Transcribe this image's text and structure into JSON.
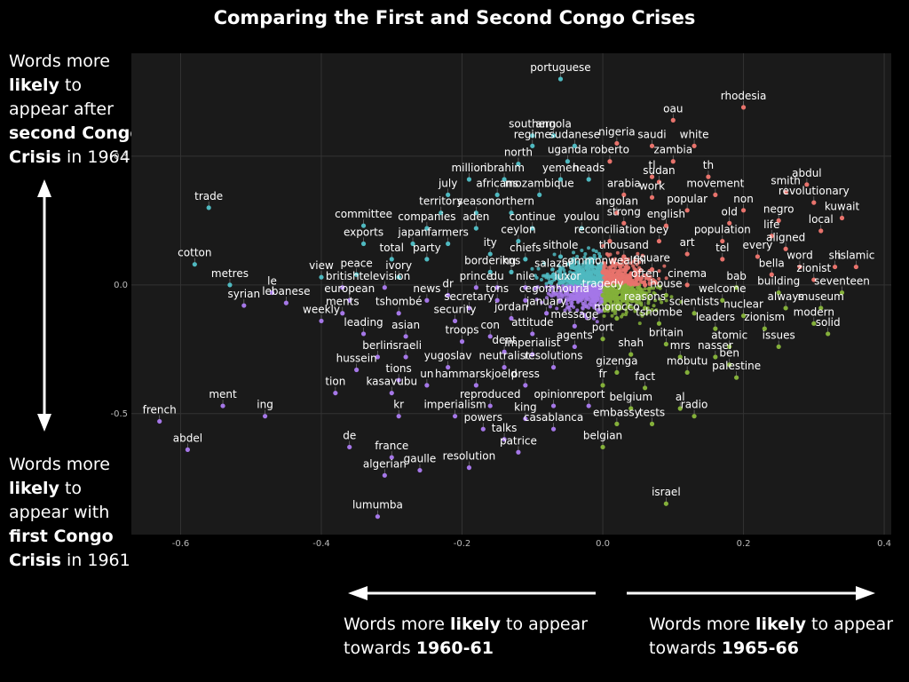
{
  "title": "Comparing the First and Second Congo Crises",
  "left_annotations": {
    "top": [
      "Words more ",
      "likely",
      " to appear after ",
      "second Congo Crisis",
      " in 1964"
    ],
    "bottom": [
      "Words more ",
      "likely",
      " to appear with ",
      "first Congo Crisis",
      " in 1961"
    ]
  },
  "bottom_annotations": {
    "left": [
      "Words more ",
      "likely",
      " to appear towards ",
      "1960-61"
    ],
    "right": [
      "Words more ",
      "likely",
      " to appear towards ",
      "1965-66"
    ]
  },
  "colors": {
    "upper_left": "#4fb9c0",
    "upper_right": "#e8736c",
    "lower_left": "#a577e8",
    "lower_right": "#84b03a",
    "panel": "#1a1a1a",
    "grid": "#333333"
  },
  "chart_data": {
    "type": "scatter",
    "title": "Comparing the First and Second Congo Crises",
    "xlabel": "",
    "ylabel": "",
    "xlim": [
      -0.67,
      0.41
    ],
    "ylim": [
      -0.97,
      0.9
    ],
    "xticks": [
      "-0.6",
      "-0.4",
      "-0.2",
      "0.0",
      "0.2",
      "0.4"
    ],
    "xtick_values": [
      -0.6,
      -0.4,
      -0.2,
      0.0,
      0.2,
      0.4
    ],
    "yticks": [
      "0.5",
      "0.0",
      "-0.5"
    ],
    "ytick_values": [
      0.5,
      0.0,
      -0.5
    ],
    "grid": true,
    "points": [
      {
        "word": "portuguese",
        "x": -0.06,
        "y": 0.8
      },
      {
        "word": "rhodesia",
        "x": 0.2,
        "y": 0.69
      },
      {
        "word": "oau",
        "x": 0.1,
        "y": 0.64
      },
      {
        "word": "southern",
        "x": -0.1,
        "y": 0.58
      },
      {
        "word": "angola",
        "x": -0.07,
        "y": 0.58
      },
      {
        "word": "white",
        "x": 0.13,
        "y": 0.54
      },
      {
        "word": "regime",
        "x": -0.1,
        "y": 0.54
      },
      {
        "word": "sudanese",
        "x": -0.04,
        "y": 0.54
      },
      {
        "word": "nigeria",
        "x": 0.02,
        "y": 0.55
      },
      {
        "word": "saudi",
        "x": 0.07,
        "y": 0.54
      },
      {
        "word": "north",
        "x": -0.12,
        "y": 0.47
      },
      {
        "word": "uganda",
        "x": -0.05,
        "y": 0.48
      },
      {
        "word": "roberto",
        "x": 0.01,
        "y": 0.48
      },
      {
        "word": "zambia",
        "x": 0.1,
        "y": 0.48
      },
      {
        "word": "million",
        "x": -0.19,
        "y": 0.41
      },
      {
        "word": "ibrahim",
        "x": -0.14,
        "y": 0.41
      },
      {
        "word": "yemen",
        "x": -0.06,
        "y": 0.41
      },
      {
        "word": "heads",
        "x": -0.02,
        "y": 0.41
      },
      {
        "word": "tl",
        "x": 0.07,
        "y": 0.42
      },
      {
        "word": "sudan",
        "x": 0.08,
        "y": 0.4
      },
      {
        "word": "th",
        "x": 0.15,
        "y": 0.42
      },
      {
        "word": "abdul",
        "x": 0.29,
        "y": 0.39
      },
      {
        "word": "july",
        "x": -0.22,
        "y": 0.35
      },
      {
        "word": "africans",
        "x": -0.15,
        "y": 0.35
      },
      {
        "word": "mozambique",
        "x": -0.09,
        "y": 0.35
      },
      {
        "word": "arabia",
        "x": 0.03,
        "y": 0.35
      },
      {
        "word": "work",
        "x": 0.07,
        "y": 0.34
      },
      {
        "word": "movement",
        "x": 0.16,
        "y": 0.35
      },
      {
        "word": "smith",
        "x": 0.26,
        "y": 0.36
      },
      {
        "word": "revolutionary",
        "x": 0.3,
        "y": 0.32
      },
      {
        "word": "trade",
        "x": -0.56,
        "y": 0.3
      },
      {
        "word": "territory",
        "x": -0.23,
        "y": 0.28
      },
      {
        "word": "season",
        "x": -0.18,
        "y": 0.28
      },
      {
        "word": "northern",
        "x": -0.13,
        "y": 0.28
      },
      {
        "word": "angolan",
        "x": 0.02,
        "y": 0.28
      },
      {
        "word": "popular",
        "x": 0.12,
        "y": 0.29
      },
      {
        "word": "non",
        "x": 0.2,
        "y": 0.29
      },
      {
        "word": "kuwait",
        "x": 0.34,
        "y": 0.26
      },
      {
        "word": "negro",
        "x": 0.25,
        "y": 0.25
      },
      {
        "word": "committee",
        "x": -0.34,
        "y": 0.23
      },
      {
        "word": "companies",
        "x": -0.25,
        "y": 0.22
      },
      {
        "word": "aden",
        "x": -0.18,
        "y": 0.22
      },
      {
        "word": "continue",
        "x": -0.1,
        "y": 0.22
      },
      {
        "word": "youlou",
        "x": -0.03,
        "y": 0.22
      },
      {
        "word": "strong",
        "x": 0.03,
        "y": 0.24
      },
      {
        "word": "english",
        "x": 0.09,
        "y": 0.23
      },
      {
        "word": "old",
        "x": 0.18,
        "y": 0.24
      },
      {
        "word": "local",
        "x": 0.31,
        "y": 0.21
      },
      {
        "word": "life",
        "x": 0.24,
        "y": 0.19
      },
      {
        "word": "exports",
        "x": -0.34,
        "y": 0.16
      },
      {
        "word": "japan",
        "x": -0.27,
        "y": 0.16
      },
      {
        "word": "farmers",
        "x": -0.22,
        "y": 0.16
      },
      {
        "word": "ceylon",
        "x": -0.12,
        "y": 0.17
      },
      {
        "word": "reconciliation",
        "x": 0.01,
        "y": 0.17
      },
      {
        "word": "bey",
        "x": 0.08,
        "y": 0.17
      },
      {
        "word": "population",
        "x": 0.17,
        "y": 0.17
      },
      {
        "word": "aligned",
        "x": 0.26,
        "y": 0.14
      },
      {
        "word": "cotton",
        "x": -0.58,
        "y": 0.08
      },
      {
        "word": "total",
        "x": -0.3,
        "y": 0.1
      },
      {
        "word": "party",
        "x": -0.25,
        "y": 0.1
      },
      {
        "word": "ity",
        "x": -0.16,
        "y": 0.12
      },
      {
        "word": "chiefs",
        "x": -0.11,
        "y": 0.1
      },
      {
        "word": "sithole",
        "x": -0.06,
        "y": 0.11
      },
      {
        "word": "thousand",
        "x": 0.03,
        "y": 0.11
      },
      {
        "word": "art",
        "x": 0.12,
        "y": 0.12
      },
      {
        "word": "every",
        "x": 0.22,
        "y": 0.11
      },
      {
        "word": "tel",
        "x": 0.17,
        "y": 0.1
      },
      {
        "word": "word",
        "x": 0.28,
        "y": 0.07
      },
      {
        "word": "sh",
        "x": 0.33,
        "y": 0.07
      },
      {
        "word": "islamic",
        "x": 0.36,
        "y": 0.07
      },
      {
        "word": "metres",
        "x": -0.53,
        "y": 0.0
      },
      {
        "word": "view",
        "x": -0.4,
        "y": 0.03
      },
      {
        "word": "peace",
        "x": -0.35,
        "y": 0.04
      },
      {
        "word": "ivory",
        "x": -0.29,
        "y": 0.03
      },
      {
        "word": "bordering",
        "x": -0.16,
        "y": 0.05
      },
      {
        "word": "kns",
        "x": -0.13,
        "y": 0.05
      },
      {
        "word": "salazar",
        "x": -0.07,
        "y": 0.04
      },
      {
        "word": "commonwealth",
        "x": 0.0,
        "y": 0.05
      },
      {
        "word": "square",
        "x": 0.07,
        "y": 0.06
      },
      {
        "word": "bella",
        "x": 0.24,
        "y": 0.04
      },
      {
        "word": "zionist",
        "x": 0.3,
        "y": 0.02
      },
      {
        "word": "le",
        "x": -0.47,
        "y": -0.03
      },
      {
        "word": "british",
        "x": -0.37,
        "y": -0.01
      },
      {
        "word": "television",
        "x": -0.31,
        "y": -0.01
      },
      {
        "word": "prince",
        "x": -0.18,
        "y": -0.01
      },
      {
        "word": "du",
        "x": -0.15,
        "y": -0.01
      },
      {
        "word": "nile",
        "x": -0.11,
        "y": -0.01
      },
      {
        "word": "luxor",
        "x": -0.05,
        "y": -0.01
      },
      {
        "word": "often",
        "x": 0.06,
        "y": 0.0
      },
      {
        "word": "cinema",
        "x": 0.12,
        "y": 0.0
      },
      {
        "word": "bab",
        "x": 0.19,
        "y": -0.01
      },
      {
        "word": "building",
        "x": 0.25,
        "y": -0.03
      },
      {
        "word": "seventeen",
        "x": 0.34,
        "y": -0.03
      },
      {
        "word": "syrian",
        "x": -0.51,
        "y": -0.08
      },
      {
        "word": "lebanese",
        "x": -0.45,
        "y": -0.07
      },
      {
        "word": "european",
        "x": -0.36,
        "y": -0.06
      },
      {
        "word": "news",
        "x": -0.25,
        "y": -0.06
      },
      {
        "word": "dr",
        "x": -0.22,
        "y": -0.04
      },
      {
        "word": "tons",
        "x": -0.15,
        "y": -0.06
      },
      {
        "word": "ce",
        "x": -0.11,
        "y": -0.06
      },
      {
        "word": "gomhouria",
        "x": -0.06,
        "y": -0.06
      },
      {
        "word": "tragedy",
        "x": 0.0,
        "y": -0.04
      },
      {
        "word": "house",
        "x": 0.09,
        "y": -0.04
      },
      {
        "word": "welcome",
        "x": 0.17,
        "y": -0.06
      },
      {
        "word": "always",
        "x": 0.26,
        "y": -0.09
      },
      {
        "word": "museum",
        "x": 0.31,
        "y": -0.09
      },
      {
        "word": "ments",
        "x": -0.37,
        "y": -0.11
      },
      {
        "word": "tshombé",
        "x": -0.29,
        "y": -0.11
      },
      {
        "word": "secretary",
        "x": -0.19,
        "y": -0.09
      },
      {
        "word": "january",
        "x": -0.08,
        "y": -0.11
      },
      {
        "word": "reasons",
        "x": 0.06,
        "y": -0.09
      },
      {
        "word": "scientists",
        "x": 0.13,
        "y": -0.11
      },
      {
        "word": "nuclear",
        "x": 0.2,
        "y": -0.12
      },
      {
        "word": "weekly",
        "x": -0.4,
        "y": -0.14
      },
      {
        "word": "security",
        "x": -0.21,
        "y": -0.14
      },
      {
        "word": "jordan",
        "x": -0.13,
        "y": -0.13
      },
      {
        "word": "message",
        "x": -0.04,
        "y": -0.16
      },
      {
        "word": "morocco",
        "x": 0.02,
        "y": -0.13
      },
      {
        "word": "tshombe",
        "x": 0.08,
        "y": -0.15
      },
      {
        "word": "leaders",
        "x": 0.16,
        "y": -0.17
      },
      {
        "word": "zionism",
        "x": 0.23,
        "y": -0.17
      },
      {
        "word": "modern",
        "x": 0.3,
        "y": -0.15
      },
      {
        "word": "leading",
        "x": -0.34,
        "y": -0.19
      },
      {
        "word": "asian",
        "x": -0.28,
        "y": -0.2
      },
      {
        "word": "troops",
        "x": -0.2,
        "y": -0.22
      },
      {
        "word": "con",
        "x": -0.16,
        "y": -0.2
      },
      {
        "word": "attitude",
        "x": -0.1,
        "y": -0.19
      },
      {
        "word": "port",
        "x": 0.0,
        "y": -0.21
      },
      {
        "word": "britain",
        "x": 0.09,
        "y": -0.23
      },
      {
        "word": "solid",
        "x": 0.32,
        "y": -0.19
      },
      {
        "word": "agents",
        "x": -0.04,
        "y": -0.24
      },
      {
        "word": "dent",
        "x": -0.14,
        "y": -0.26
      },
      {
        "word": "atomic",
        "x": 0.18,
        "y": -0.24
      },
      {
        "word": "issues",
        "x": 0.25,
        "y": -0.24
      },
      {
        "word": "berlin",
        "x": -0.32,
        "y": -0.28
      },
      {
        "word": "israeli",
        "x": -0.28,
        "y": -0.28
      },
      {
        "word": "imperialist",
        "x": -0.1,
        "y": -0.27
      },
      {
        "word": "shah",
        "x": 0.04,
        "y": -0.27
      },
      {
        "word": "mrs",
        "x": 0.11,
        "y": -0.28
      },
      {
        "word": "nasser",
        "x": 0.16,
        "y": -0.28
      },
      {
        "word": "yugoslav",
        "x": -0.22,
        "y": -0.32
      },
      {
        "word": "neutralist",
        "x": -0.14,
        "y": -0.32
      },
      {
        "word": "resolutions",
        "x": -0.07,
        "y": -0.32
      },
      {
        "word": "ben",
        "x": 0.18,
        "y": -0.31
      },
      {
        "word": "hussein",
        "x": -0.35,
        "y": -0.33
      },
      {
        "word": "gizenga",
        "x": 0.02,
        "y": -0.34
      },
      {
        "word": "mobutu",
        "x": 0.12,
        "y": -0.34
      },
      {
        "word": "palestine",
        "x": 0.19,
        "y": -0.36
      },
      {
        "word": "tions",
        "x": -0.29,
        "y": -0.37
      },
      {
        "word": "un",
        "x": -0.25,
        "y": -0.39
      },
      {
        "word": "hammarskjoeld",
        "x": -0.18,
        "y": -0.39
      },
      {
        "word": "press",
        "x": -0.11,
        "y": -0.39
      },
      {
        "word": "fr",
        "x": 0.0,
        "y": -0.39
      },
      {
        "word": "fact",
        "x": 0.06,
        "y": -0.4
      },
      {
        "word": "tion",
        "x": -0.38,
        "y": -0.42
      },
      {
        "word": "kasavubu",
        "x": -0.3,
        "y": -0.42
      },
      {
        "word": "ment",
        "x": -0.54,
        "y": -0.47
      },
      {
        "word": "ing",
        "x": -0.48,
        "y": -0.51
      },
      {
        "word": "reproduced",
        "x": -0.16,
        "y": -0.47
      },
      {
        "word": "opinion",
        "x": -0.07,
        "y": -0.47
      },
      {
        "word": "report",
        "x": -0.02,
        "y": -0.47
      },
      {
        "word": "belgium",
        "x": 0.04,
        "y": -0.48
      },
      {
        "word": "al",
        "x": 0.11,
        "y": -0.48
      },
      {
        "word": "kr",
        "x": -0.29,
        "y": -0.51
      },
      {
        "word": "imperialism",
        "x": -0.21,
        "y": -0.51
      },
      {
        "word": "king",
        "x": -0.11,
        "y": -0.52
      },
      {
        "word": "embassy",
        "x": 0.02,
        "y": -0.54
      },
      {
        "word": "tests",
        "x": 0.07,
        "y": -0.54
      },
      {
        "word": "radio",
        "x": 0.13,
        "y": -0.51
      },
      {
        "word": "french",
        "x": -0.63,
        "y": -0.53
      },
      {
        "word": "powers",
        "x": -0.17,
        "y": -0.56
      },
      {
        "word": "casablanca",
        "x": -0.07,
        "y": -0.56
      },
      {
        "word": "de",
        "x": -0.36,
        "y": -0.63
      },
      {
        "word": "talks",
        "x": -0.14,
        "y": -0.6
      },
      {
        "word": "belgian",
        "x": 0.0,
        "y": -0.63
      },
      {
        "word": "abdel",
        "x": -0.59,
        "y": -0.64
      },
      {
        "word": "patrice",
        "x": -0.12,
        "y": -0.65
      },
      {
        "word": "france",
        "x": -0.3,
        "y": -0.67
      },
      {
        "word": "gaulle",
        "x": -0.26,
        "y": -0.72
      },
      {
        "word": "resolution",
        "x": -0.19,
        "y": -0.71
      },
      {
        "word": "algerian",
        "x": -0.31,
        "y": -0.74
      },
      {
        "word": "israel",
        "x": 0.09,
        "y": -0.85
      },
      {
        "word": "lumumba",
        "x": -0.32,
        "y": -0.9
      }
    ]
  }
}
